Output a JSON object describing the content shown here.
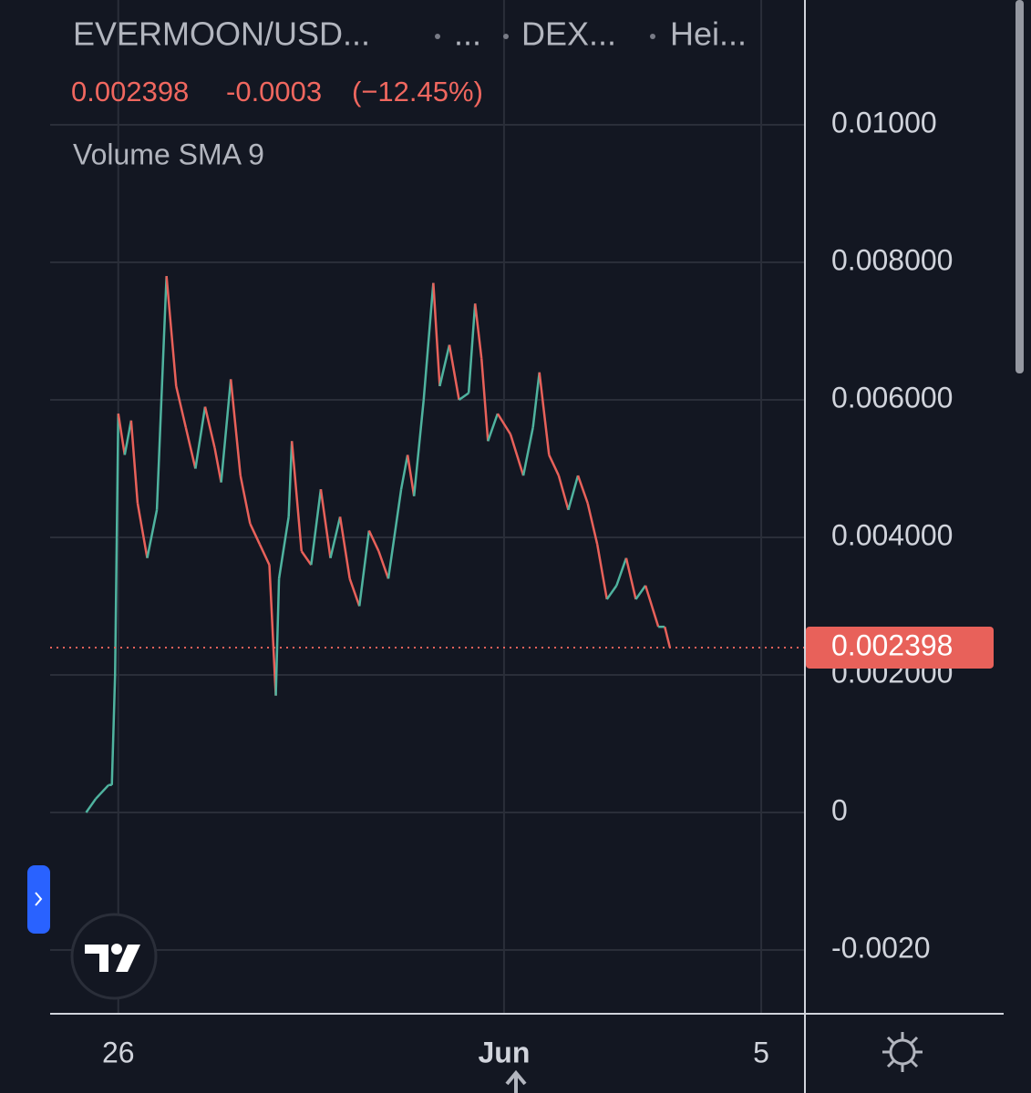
{
  "chart_data": {
    "type": "line",
    "title": "EVERMOON/USD...",
    "header_items": [
      "...",
      "DEX...",
      "Hei..."
    ],
    "last_price": 0.002398,
    "change": -0.0003,
    "change_label": "(−12.45%)",
    "indicator": "Volume SMA 9",
    "up_color": "#4fb39f",
    "down_color": "#e8615a",
    "x": [
      -0.5,
      -0.35,
      -0.15,
      -0.1,
      -0.05,
      0,
      0.1,
      0.2,
      0.3,
      0.45,
      0.6,
      0.75,
      0.9,
      1.05,
      1.2,
      1.35,
      1.5,
      1.6,
      1.75,
      1.9,
      2.05,
      2.2,
      2.35,
      2.45,
      2.5,
      2.65,
      2.7,
      2.85,
      3.0,
      3.15,
      3.3,
      3.45,
      3.6,
      3.75,
      3.9,
      4.05,
      4.2,
      4.4,
      4.5,
      4.6,
      4.75,
      4.9,
      5.0,
      5.15,
      5.3,
      5.45,
      5.55,
      5.65,
      5.75,
      5.9,
      6.1,
      6.3,
      6.45,
      6.55,
      6.7,
      6.85,
      7.0,
      7.15,
      7.3,
      7.45,
      7.6,
      7.75,
      7.9,
      8.05,
      8.2,
      8.4,
      8.5,
      8.58
    ],
    "values": [
      0,
      0.0002,
      0.0004,
      0.0004,
      0.002,
      0.0058,
      0.0052,
      0.0057,
      0.0045,
      0.0037,
      0.0044,
      0.0078,
      0.0062,
      0.0056,
      0.005,
      0.0059,
      0.0053,
      0.0048,
      0.0063,
      0.0049,
      0.0042,
      0.0039,
      0.0036,
      0.0017,
      0.0034,
      0.0043,
      0.0054,
      0.0038,
      0.0036,
      0.0047,
      0.0037,
      0.0043,
      0.0034,
      0.003,
      0.0041,
      0.0038,
      0.0034,
      0.0047,
      0.0052,
      0.0046,
      0.006,
      0.0077,
      0.0062,
      0.0068,
      0.006,
      0.0061,
      0.0074,
      0.0066,
      0.0054,
      0.0058,
      0.0055,
      0.0049,
      0.0056,
      0.0064,
      0.0052,
      0.0049,
      0.0044,
      0.0049,
      0.0045,
      0.0039,
      0.0031,
      0.0033,
      0.0037,
      0.0031,
      0.0033,
      0.0027,
      0.0027,
      0.002398
    ],
    "xlim": [
      -1.06,
      10.68
    ],
    "ylim": [
      -0.002927,
      0.011815
    ],
    "xticks": [
      {
        "value": 0,
        "label": "26"
      },
      {
        "value": 6,
        "label": "Jun"
      },
      {
        "value": 10,
        "label": "5"
      }
    ],
    "yticks": [
      {
        "value": 0.01,
        "label": "0.01000"
      },
      {
        "value": 0.008,
        "label": "0.008000"
      },
      {
        "value": 0.006,
        "label": "0.006000"
      },
      {
        "value": 0.004,
        "label": "0.004000"
      },
      {
        "value": 0.002,
        "label": "0.002000"
      },
      0,
      {
        "value": -0.002,
        "label": "-0.0020"
      }
    ],
    "grid": true
  }
}
